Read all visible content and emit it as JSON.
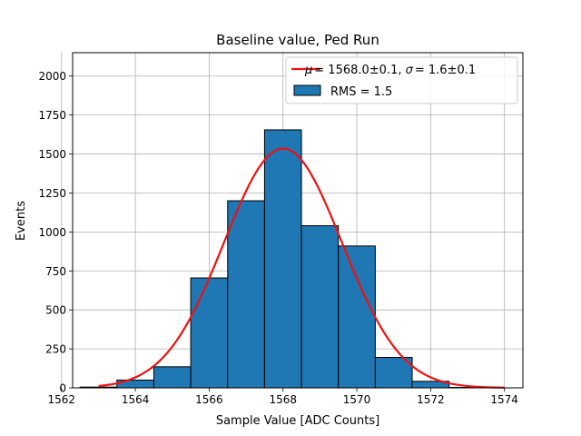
{
  "chart_data": {
    "type": "bar",
    "title": "Baseline value, Ped Run",
    "xlabel": "Sample Value [ADC Counts]",
    "ylabel": "Events",
    "xlim": [
      1562.3,
      1574.5
    ],
    "ylim": [
      0,
      2150
    ],
    "xticks": [
      1562,
      1564,
      1566,
      1568,
      1570,
      1572,
      1574
    ],
    "yticks": [
      0,
      250,
      500,
      750,
      1000,
      1250,
      1500,
      1750,
      2000
    ],
    "grid": true,
    "legend_position": "top-right",
    "bin_width": 1,
    "bins": [
      {
        "center": 1563,
        "value": 5
      },
      {
        "center": 1564,
        "value": 50
      },
      {
        "center": 1565,
        "value": 135
      },
      {
        "center": 1566,
        "value": 705
      },
      {
        "center": 1567,
        "value": 1200
      },
      {
        "center": 1568,
        "value": 1655
      },
      {
        "center": 1569,
        "value": 1040
      },
      {
        "center": 1570,
        "value": 910
      },
      {
        "center": 1571,
        "value": 195
      },
      {
        "center": 1572,
        "value": 42
      },
      {
        "center": 1573,
        "value": 3
      }
    ],
    "fit": {
      "mean": 1568.0,
      "sigma": 1.6,
      "amplitude": 1535,
      "x_range": [
        1563,
        1574
      ],
      "color": "#ee1111"
    },
    "bar_color": "#1f77b4",
    "series": [
      {
        "name_prefix": "μ",
        "name_tex": "= 1568.0±0.1, ",
        "name_sigma": "σ",
        "name_rest": "= 1.6±0.1",
        "kind": "line"
      },
      {
        "name": "RMS = 1.5",
        "kind": "bar"
      }
    ]
  }
}
